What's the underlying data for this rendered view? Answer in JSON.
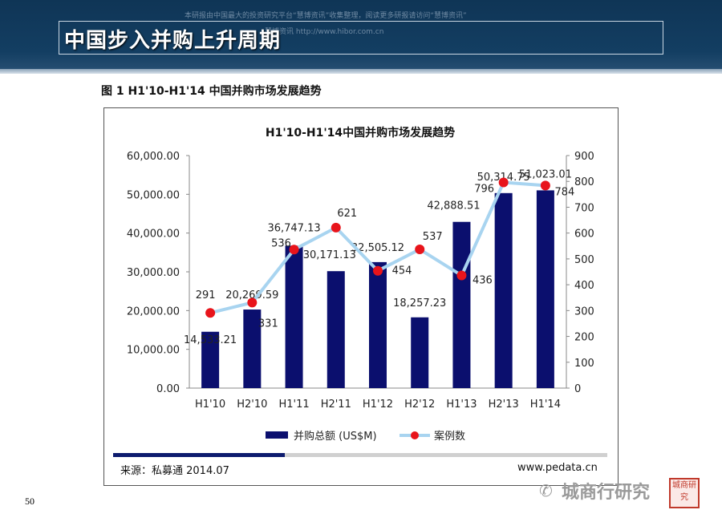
{
  "header": {
    "title": "中国步入并购上升周期",
    "watermark_line1": "本研报由中国最大的投资研究平台“慧博资讯”收集整理，阅读更多研报请访问“慧博资讯”",
    "watermark_line2": "慧博资讯 http://www.hibor.com.cn"
  },
  "figure": {
    "caption": "图 1 H1'10-H1'14 中国并购市场发展趋势",
    "source": "来源：私募通 2014.07",
    "site": "www.pedata.cn"
  },
  "chart_data": {
    "type": "bar",
    "title": "H1'10-H1'14中国并购市场发展趋势",
    "categories": [
      "H1'10",
      "H2'10",
      "H1'11",
      "H2'11",
      "H1'12",
      "H2'12",
      "H1'13",
      "H2'13",
      "H1'14"
    ],
    "series": [
      {
        "name": "并购总额 (US$M)",
        "type": "bar",
        "axis": "left",
        "color": "#0b0f6e",
        "values": [
          14533.21,
          20269.59,
          36747.13,
          30171.13,
          32505.12,
          18257.23,
          42888.51,
          50314.75,
          51023.01
        ],
        "labels": [
          "14,533.21",
          "20,269.59",
          "36,747.13",
          "30,171.13",
          "32,505.12",
          "18,257.23",
          "42,888.51",
          "50,314.75",
          "51,023.01"
        ]
      },
      {
        "name": "案例数",
        "type": "line",
        "axis": "right",
        "color": "#a8d4f0",
        "marker_color": "#e8141b",
        "values": [
          291,
          331,
          536,
          621,
          454,
          537,
          436,
          796,
          784
        ],
        "labels": [
          "291",
          "331",
          "536",
          "621",
          "454",
          "537",
          "436",
          "796",
          "784"
        ]
      }
    ],
    "y_left": {
      "min": 0,
      "max": 60000,
      "ticks": [
        "0.00",
        "10,000.00",
        "20,000.00",
        "30,000.00",
        "40,000.00",
        "50,000.00",
        "60,000.00"
      ]
    },
    "y_right": {
      "min": 0,
      "max": 900,
      "ticks": [
        "0",
        "100",
        "200",
        "300",
        "400",
        "500",
        "600",
        "700",
        "800",
        "900"
      ]
    },
    "legend_position": "bottom",
    "grid": false
  },
  "page": {
    "number": "50"
  },
  "branding": {
    "name": "城商行研究",
    "icon": "wechat-icon",
    "seal_text": "城商研究"
  }
}
